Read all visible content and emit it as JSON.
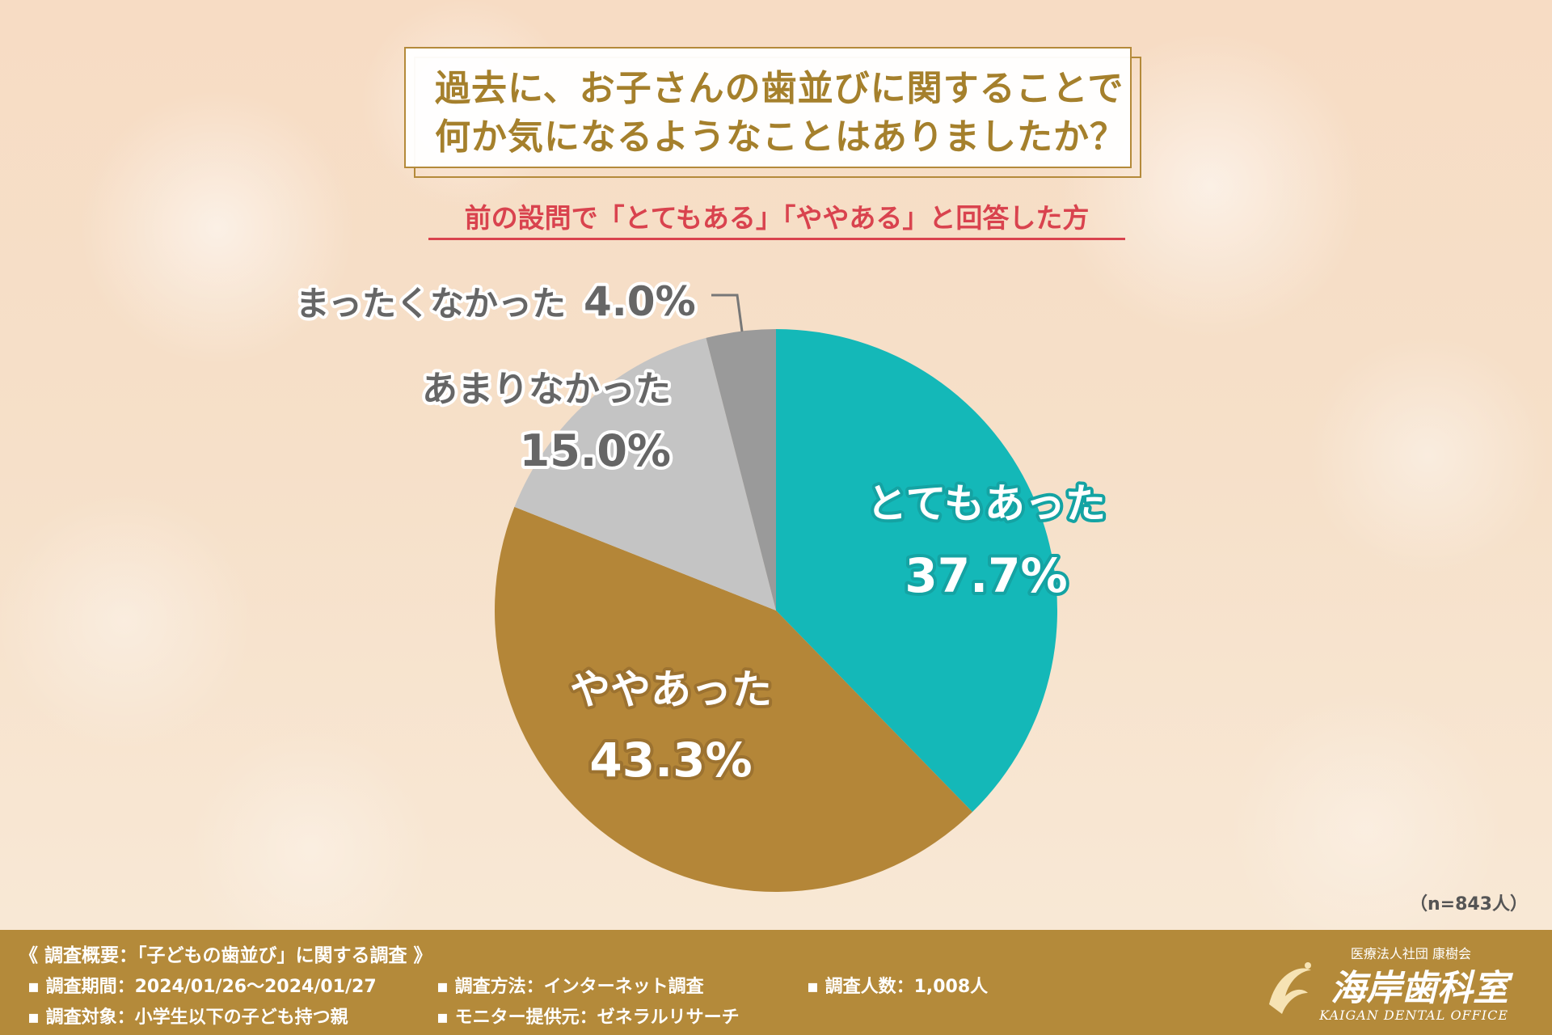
{
  "title_lines": [
    "過去に、お子さんの歯並びに関することで",
    "何か気になるようなことはありましたか？"
  ],
  "subtitle": "前の設問で「とてもある」「ややある」と回答した方",
  "sample_size": "（n=843人）",
  "chart_data": {
    "type": "pie",
    "start_angle_deg": 0,
    "direction": "clockwise",
    "slices": [
      {
        "label": "とてもあった",
        "value": 37.7,
        "value_text": "37.7%",
        "color": "#14b8b8"
      },
      {
        "label": "ややあった",
        "value": 43.3,
        "value_text": "43.3%",
        "color": "#b48638"
      },
      {
        "label": "あまりなかった",
        "value": 15.0,
        "value_text": "15.0%",
        "color": "#c4c4c4"
      },
      {
        "label": "まったくなかった",
        "value": 4.0,
        "value_text": "4.0%",
        "color": "#9a9a9a"
      }
    ]
  },
  "footer": {
    "summary_title": "《 調査概要：「子どもの歯並び」に関する調査 》",
    "items": [
      "調査期間：2024/01/26～2024/01/27",
      "調査方法：インターネット調査",
      "調査人数：1,008人",
      "調査対象：小学生以下の子ども持つ親",
      "モニター提供元：ゼネラルリサーチ"
    ]
  },
  "logo": {
    "org": "医療法人社団 康樹会",
    "name": "海岸歯科室",
    "en": "KAIGAN DENTAL OFFICE"
  }
}
